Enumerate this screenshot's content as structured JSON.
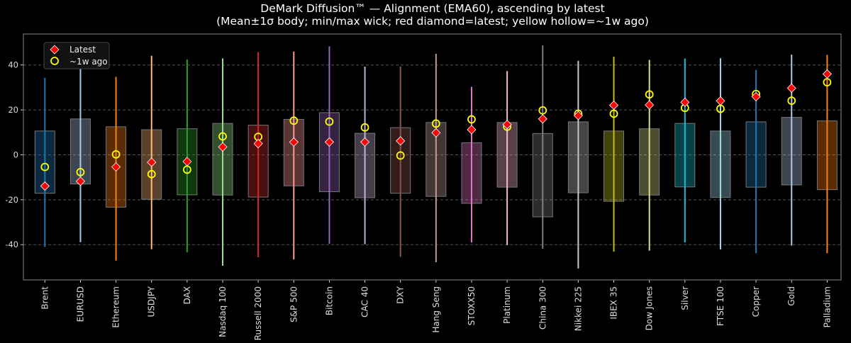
{
  "chart_data": {
    "type": "boxplot",
    "title": "DeMark Diffusion™ — Alignment (EMA60), ascending by latest",
    "subtitle": "(Mean±1σ body; min/max wick; red diamond=latest; yellow hollow=~1w ago)",
    "xlabel": "",
    "ylabel": "",
    "ylim": [
      -55.7,
      53.8
    ],
    "yticks": [
      -40,
      -20,
      0,
      20,
      40
    ],
    "grid": true,
    "legend_position": "top-left",
    "legend": [
      {
        "label": "Latest",
        "marker": "diamond",
        "color": "#ff0000"
      },
      {
        "label": "~1w ago",
        "marker": "hollow-circle",
        "color": "#ffff00"
      }
    ],
    "categories": [
      "Brent",
      "EURUSD",
      "Ethereum",
      "USDJPY",
      "DAX",
      "Nasdaq 100",
      "Russell 2000",
      "S&P 500",
      "Bitcoin",
      "CAC 40",
      "DXY",
      "Hang Seng",
      "STOXX50",
      "Platinum",
      "China 300",
      "Nikkei 225",
      "IBEX 35",
      "Dow Jones",
      "Silver",
      "FTSE 100",
      "Copper",
      "Gold",
      "Palladium"
    ],
    "colors": [
      "#1f77b4",
      "#aec7e8",
      "#ff7f0e",
      "#ffbb78",
      "#2ca02c",
      "#98df8a",
      "#d62728",
      "#ff9896",
      "#9467bd",
      "#c5b0d5",
      "#8c564b",
      "#c49c94",
      "#e377c2",
      "#f7b6d2",
      "#7f7f7f",
      "#c7c7c7",
      "#bcbd22",
      "#dbdb8d",
      "#17becf",
      "#9edae5",
      "#1f77b4",
      "#aec7e8",
      "#ff7f0e"
    ],
    "min": [
      -41.0,
      -38.9,
      -47.1,
      -42.0,
      -43.3,
      -49.4,
      -45.6,
      -46.6,
      -39.6,
      -39.8,
      -45.4,
      -47.8,
      -39.0,
      -40.2,
      -41.8,
      -50.6,
      -43.1,
      -42.7,
      -39.0,
      -42.1,
      -43.8,
      -40.4,
      -43.8
    ],
    "max": [
      34.3,
      45.1,
      34.7,
      44.1,
      42.5,
      42.9,
      45.8,
      46.0,
      48.3,
      39.3,
      39.3,
      45.0,
      30.3,
      37.3,
      48.8,
      41.9,
      43.7,
      42.3,
      42.9,
      43.0,
      37.8,
      44.6,
      44.5
    ],
    "body_low": [
      -17.1,
      -13.0,
      -23.3,
      -19.8,
      -17.8,
      -17.9,
      -18.8,
      -13.8,
      -16.4,
      -19.1,
      -17.1,
      -18.5,
      -21.6,
      -14.4,
      -27.6,
      -16.9,
      -20.7,
      -17.9,
      -14.3,
      -19.0,
      -14.4,
      -13.4,
      -15.5
    ],
    "body_high": [
      10.6,
      16.0,
      12.5,
      11.2,
      11.6,
      14.0,
      13.2,
      15.8,
      18.8,
      9.6,
      12.1,
      14.4,
      5.4,
      14.4,
      9.5,
      14.7,
      10.6,
      11.6,
      14.0,
      10.6,
      14.7,
      16.7,
      15.1
    ],
    "latest": [
      -13.9,
      -11.8,
      -5.4,
      -3.3,
      -3.0,
      3.5,
      5.0,
      5.7,
      5.7,
      5.7,
      6.2,
      9.8,
      11.2,
      13.5,
      16.0,
      17.5,
      22.1,
      22.2,
      23.4,
      24.0,
      25.9,
      29.7,
      36.0
    ],
    "week_ago": [
      -5.4,
      -7.7,
      0.2,
      -8.6,
      -6.6,
      8.2,
      8.0,
      15.2,
      14.8,
      12.2,
      -0.3,
      13.9,
      15.8,
      12.5,
      19.8,
      18.3,
      18.3,
      26.9,
      20.9,
      20.5,
      27.1,
      24.1,
      32.3
    ]
  }
}
